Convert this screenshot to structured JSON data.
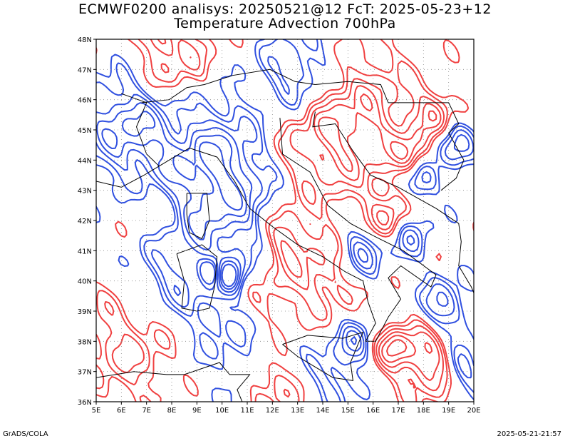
{
  "title_line1": "ECMWF0200 analisys: 20250521@12 FcT: 2025-05-23+12",
  "title_line2": "Temperature Advection 700hPa",
  "footer_left": "GrADS/COLA",
  "footer_right": "2025-05-21-21:57",
  "map": {
    "lon_range": [
      5,
      20
    ],
    "lat_range": [
      36,
      48
    ],
    "lon_ticks": [
      "5E",
      "6E",
      "7E",
      "8E",
      "9E",
      "10E",
      "11E",
      "12E",
      "13E",
      "14E",
      "15E",
      "16E",
      "17E",
      "18E",
      "19E",
      "20E"
    ],
    "lat_ticks": [
      "36N",
      "37N",
      "38N",
      "39N",
      "40N",
      "41N",
      "42N",
      "43N",
      "44N",
      "45N",
      "46N",
      "47N",
      "48N"
    ],
    "grid": "dotted",
    "positive_color": "#f04040",
    "negative_color": "#3050e0",
    "coast_color": "#000000"
  }
}
